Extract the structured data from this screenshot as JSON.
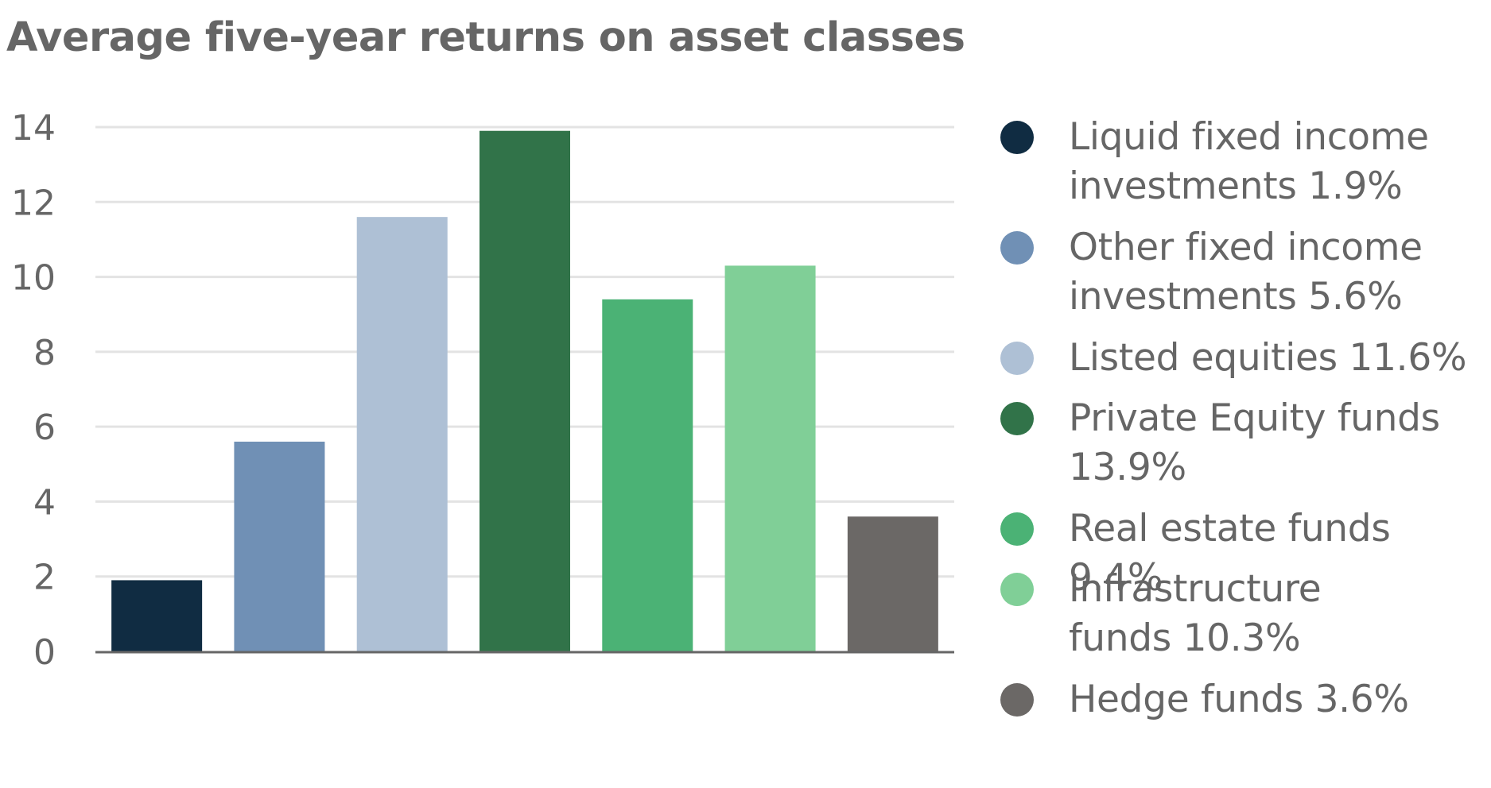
{
  "chart_data": {
    "type": "bar",
    "title": "Average five-year returns on asset classes",
    "xlabel": "",
    "ylabel": "",
    "ylim": [
      0,
      14
    ],
    "yticks": [
      0,
      2,
      4,
      6,
      8,
      10,
      12,
      14
    ],
    "grid": true,
    "legend_position": "right",
    "categories": [
      "Liquid fixed income investments",
      "Other fixed income investments",
      "Listed equities",
      "Private Equity funds",
      "Real estate funds",
      "Infrastructure funds",
      "Hedge funds"
    ],
    "values": [
      1.9,
      5.6,
      11.6,
      13.9,
      9.4,
      10.3,
      3.6
    ],
    "colors": [
      "#102c42",
      "#7090b5",
      "#aec0d5",
      "#317349",
      "#4bb275",
      "#80cf97",
      "#6b6866"
    ],
    "legend": [
      {
        "label": "Liquid fixed income investments 1.9%",
        "lines": [
          "Liquid fixed income",
          "investments 1.9%"
        ]
      },
      {
        "label": "Other fixed income investments 5.6%",
        "lines": [
          "Other fixed income",
          "investments 5.6%"
        ]
      },
      {
        "label": "Listed equities 11.6%",
        "lines": [
          "Listed equities 11.6%"
        ]
      },
      {
        "label": "Private Equity funds 13.9%",
        "lines": [
          "Private Equity funds",
          "13.9%"
        ]
      },
      {
        "label": "Real estate funds 9.4%",
        "lines": [
          "Real estate funds 9.4%"
        ]
      },
      {
        "label": "Infrastructure funds 10.3%",
        "lines": [
          "Infrastructure",
          "funds 10.3%"
        ]
      },
      {
        "label": "Hedge funds 3.6%",
        "lines": [
          "Hedge funds 3.6%"
        ]
      }
    ]
  },
  "colors": {
    "gridline": "#e3e3e3",
    "axis": "#666666",
    "text": "#666666"
  }
}
